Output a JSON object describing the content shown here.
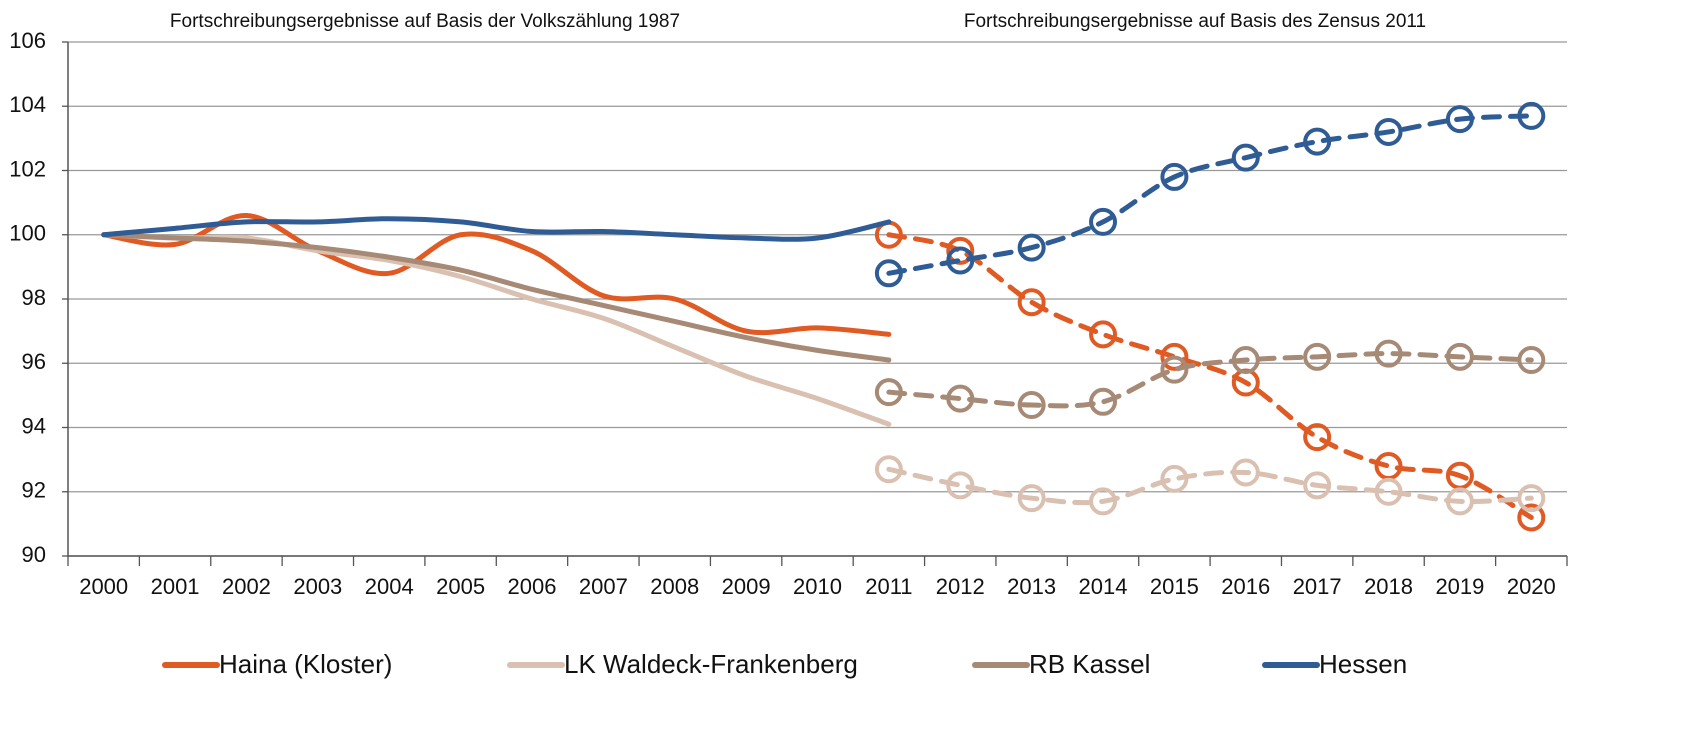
{
  "chart_data": {
    "type": "line",
    "annotations": [
      "Fortschreibungsergebnisse auf Basis der Volkszählung 1987",
      "Fortschreibungsergebnisse auf Basis des Zensus 2011"
    ],
    "categories": [
      2000,
      2001,
      2002,
      2003,
      2004,
      2005,
      2006,
      2007,
      2008,
      2009,
      2010,
      2011,
      2012,
      2013,
      2014,
      2015,
      2016,
      2017,
      2018,
      2019,
      2020
    ],
    "series": [
      {
        "name": "Haina (Kloster)",
        "color": "#e05a24",
        "values": [
          100,
          99.7,
          100.6,
          99.5,
          98.8,
          100.0,
          99.5,
          98.1,
          98.0,
          97.0,
          97.1,
          96.9,
          null,
          null,
          null,
          null,
          null,
          null,
          null,
          null,
          null
        ],
        "zensus_values": [
          null,
          null,
          null,
          null,
          null,
          null,
          null,
          null,
          null,
          null,
          null,
          100.0,
          99.5,
          97.9,
          96.9,
          96.2,
          95.4,
          93.7,
          92.8,
          92.5,
          91.2
        ]
      },
      {
        "name": "LK Waldeck-Frankenberg",
        "color": "#d9c0b1",
        "values": [
          100,
          99.9,
          99.9,
          99.5,
          99.2,
          98.7,
          98.0,
          97.4,
          96.5,
          95.6,
          94.9,
          94.1,
          null,
          null,
          null,
          null,
          null,
          null,
          null,
          null,
          null
        ],
        "zensus_values": [
          null,
          null,
          null,
          null,
          null,
          null,
          null,
          null,
          null,
          null,
          null,
          92.7,
          92.2,
          91.8,
          91.7,
          92.4,
          92.6,
          92.2,
          92.0,
          91.7,
          91.8
        ]
      },
      {
        "name": "RB Kassel",
        "color": "#a68a76",
        "values": [
          100,
          99.9,
          99.8,
          99.6,
          99.3,
          98.9,
          98.3,
          97.8,
          97.3,
          96.8,
          96.4,
          96.1,
          null,
          null,
          null,
          null,
          null,
          null,
          null,
          null,
          null
        ],
        "zensus_values": [
          null,
          null,
          null,
          null,
          null,
          null,
          null,
          null,
          null,
          null,
          null,
          95.1,
          94.9,
          94.7,
          94.8,
          95.8,
          96.1,
          96.2,
          96.3,
          96.2,
          96.1
        ]
      },
      {
        "name": "Hessen",
        "color": "#2f5c94",
        "values": [
          100,
          100.2,
          100.4,
          100.4,
          100.5,
          100.4,
          100.1,
          100.1,
          100.0,
          99.9,
          99.9,
          100.4,
          null,
          null,
          null,
          null,
          null,
          null,
          null,
          null,
          null
        ],
        "zensus_values": [
          null,
          null,
          null,
          null,
          null,
          null,
          null,
          null,
          null,
          null,
          null,
          98.8,
          99.2,
          99.6,
          100.4,
          101.8,
          102.4,
          102.9,
          103.2,
          103.6,
          103.7
        ]
      }
    ],
    "ylim": [
      90,
      106
    ],
    "yticks": [
      90,
      92,
      94,
      96,
      98,
      100,
      102,
      104,
      106
    ],
    "grid": true
  }
}
